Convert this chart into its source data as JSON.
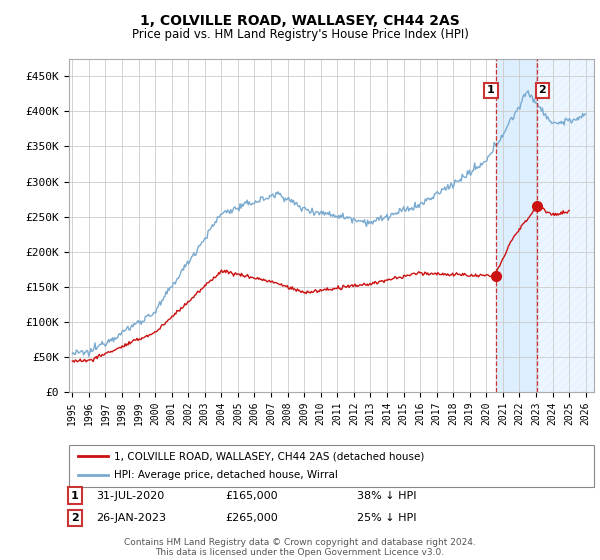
{
  "title": "1, COLVILLE ROAD, WALLASEY, CH44 2AS",
  "subtitle": "Price paid vs. HM Land Registry's House Price Index (HPI)",
  "ylabel_ticks": [
    "£0",
    "£50K",
    "£100K",
    "£150K",
    "£200K",
    "£250K",
    "£300K",
    "£350K",
    "£400K",
    "£450K"
  ],
  "ytick_values": [
    0,
    50000,
    100000,
    150000,
    200000,
    250000,
    300000,
    350000,
    400000,
    450000
  ],
  "ylim": [
    0,
    475000
  ],
  "xlim_start": 1994.8,
  "xlim_end": 2026.5,
  "hpi_color": "#7aaad0",
  "price_color": "#cc1111",
  "grid_color": "#cccccc",
  "bg_color": "#ffffff",
  "shade_color": "#ddeeff",
  "vline1_x": 2020.58,
  "vline2_x": 2023.08,
  "vline_color": "#cc3333",
  "dot1_x": 2020.58,
  "dot1_y": 165000,
  "dot2_x": 2023.08,
  "dot2_y": 265000,
  "legend_line1": "1, COLVILLE ROAD, WALLASEY, CH44 2AS (detached house)",
  "legend_line2": "HPI: Average price, detached house, Wirral",
  "footer": "Contains HM Land Registry data © Crown copyright and database right 2024.\nThis data is licensed under the Open Government Licence v3.0.",
  "table_row1": [
    "1",
    "31-JUL-2020",
    "£165,000",
    "38% ↓ HPI"
  ],
  "table_row2": [
    "2",
    "26-JAN-2023",
    "£265,000",
    "25% ↓ HPI"
  ]
}
